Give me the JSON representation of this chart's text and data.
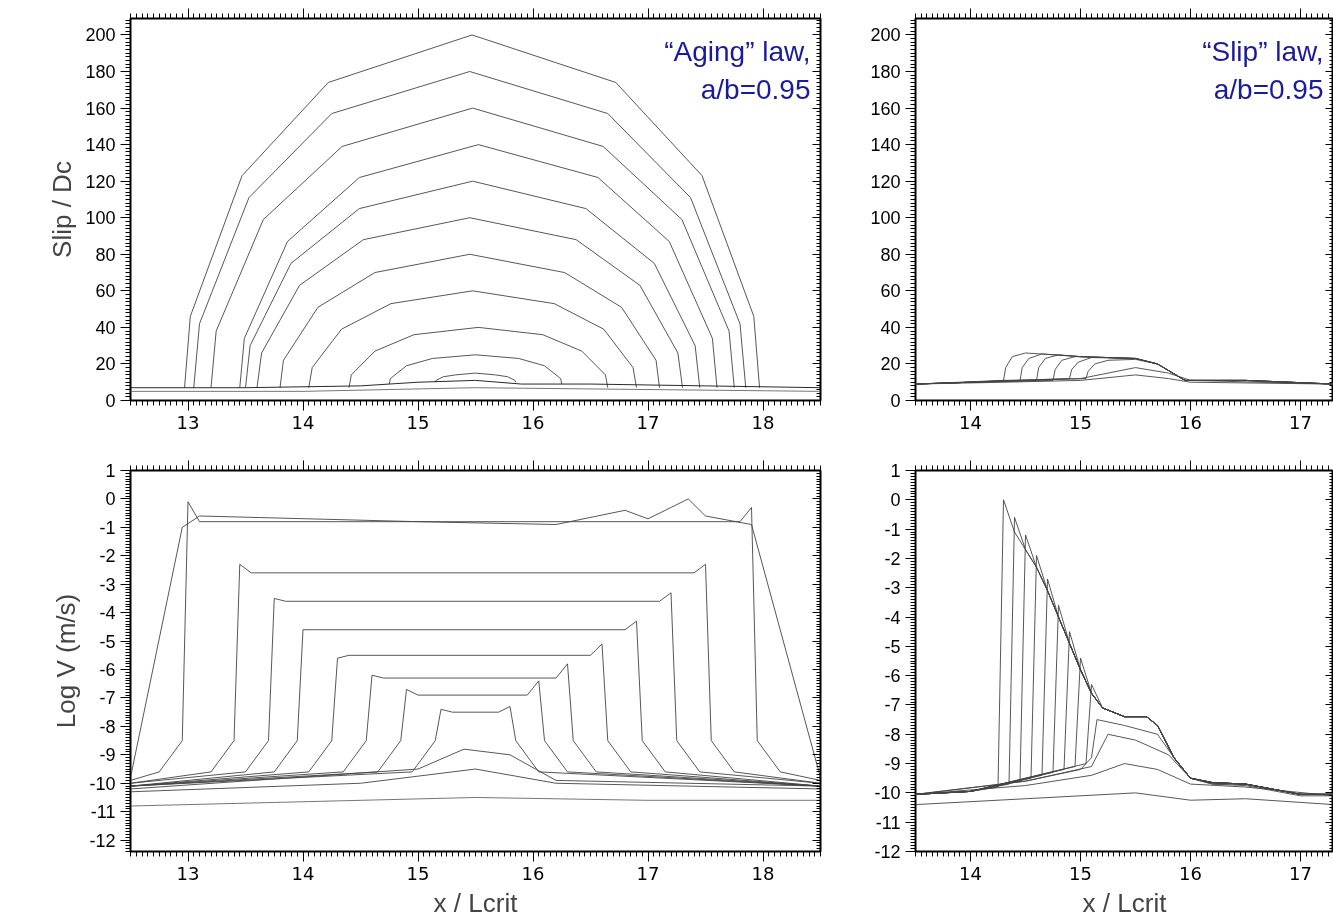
{
  "chart_data": [
    {
      "type": "line",
      "ylabel": "Slip / Dc",
      "annotations": [
        "“Aging” law,",
        "a/b=0.95"
      ],
      "xlim": [
        12.5,
        18.5
      ],
      "xticks": [
        13,
        14,
        15,
        16,
        17,
        18
      ],
      "ylim": [
        0,
        209
      ],
      "yticks": [
        0,
        20,
        40,
        60,
        80,
        100,
        120,
        140,
        160,
        180,
        200
      ],
      "series": [
        {
          "color": "#444444",
          "x": [
            12.97,
            13.02,
            13.47,
            14.22,
            15.47,
            16.72,
            17.47,
            17.92,
            17.97
          ],
          "values": [
            7,
            46,
            123,
            174,
            200,
            174,
            123,
            46,
            7
          ]
        },
        {
          "color": "#444444",
          "x": [
            13.05,
            13.1,
            13.53,
            14.25,
            15.45,
            16.65,
            17.37,
            17.8,
            17.85
          ],
          "values": [
            7,
            42,
            111,
            157,
            180,
            157,
            111,
            42,
            7
          ]
        },
        {
          "color": "#444444",
          "x": [
            13.2,
            13.245,
            13.655,
            14.34,
            15.475,
            16.61,
            17.295,
            17.705,
            17.75
          ],
          "values": [
            7,
            38,
            99,
            139,
            160,
            139,
            99,
            38,
            7
          ]
        },
        {
          "color": "#444444",
          "x": [
            13.45,
            13.49,
            13.865,
            14.49,
            15.525,
            16.565,
            17.185,
            17.56,
            17.6
          ],
          "values": [
            7,
            34,
            87,
            122,
            140,
            122,
            87,
            34,
            7
          ]
        },
        {
          "color": "#444444",
          "x": [
            13.5,
            13.54,
            13.895,
            14.49,
            15.475,
            16.46,
            17.055,
            17.41,
            17.45
          ],
          "values": [
            7,
            30,
            75,
            105,
            120,
            105,
            75,
            30,
            7
          ]
        },
        {
          "color": "#444444",
          "x": [
            13.6,
            13.64,
            13.97,
            14.525,
            15.45,
            16.375,
            16.93,
            17.26,
            17.3
          ],
          "values": [
            7,
            26,
            63,
            88,
            100,
            88,
            63,
            26,
            7
          ]
        },
        {
          "color": "#444444",
          "x": [
            13.8,
            13.83,
            14.13,
            14.625,
            15.45,
            16.275,
            16.77,
            17.07,
            17.1
          ],
          "values": [
            7,
            22,
            51,
            70,
            80,
            70,
            51,
            22,
            7
          ]
        },
        {
          "color": "#444444",
          "x": [
            14.05,
            14.08,
            14.335,
            14.765,
            15.475,
            16.185,
            16.615,
            16.87,
            16.9
          ],
          "values": [
            7,
            18,
            39,
            53,
            60,
            53,
            39,
            18,
            7
          ]
        },
        {
          "color": "#444444",
          "x": [
            14.4,
            14.42,
            14.625,
            14.965,
            15.525,
            16.085,
            16.425,
            16.63,
            16.65
          ],
          "values": [
            7,
            14,
            27,
            36,
            40,
            36,
            27,
            14,
            7
          ]
        },
        {
          "color": "#444444",
          "x": [
            14.75,
            14.76,
            14.9,
            15.125,
            15.5,
            15.875,
            16.1,
            16.24,
            16.25
          ],
          "values": [
            9,
            12,
            19,
            23,
            25,
            23,
            19,
            12,
            9
          ]
        },
        {
          "color": "#444444",
          "x": [
            15.15,
            15.157,
            15.22,
            15.325,
            15.5,
            15.675,
            15.78,
            15.843,
            15.85
          ],
          "values": [
            10,
            11,
            13,
            14,
            15,
            14,
            13,
            11,
            10
          ]
        },
        {
          "color": "#111111",
          "x": [
            12.5,
            13.5,
            14.5,
            15.0,
            15.5,
            15.9,
            16.5,
            17.5,
            18.5
          ],
          "values": [
            7,
            7,
            8,
            10,
            11,
            9,
            9,
            8,
            7
          ]
        },
        {
          "color": "#666666",
          "x": [
            12.5,
            14.0,
            15.5,
            17.0,
            18.5
          ],
          "values": [
            5,
            5,
            7,
            6,
            5
          ]
        }
      ]
    },
    {
      "type": "line",
      "annotations": [
        "“Slip” law,",
        "a/b=0.95"
      ],
      "xlim": [
        13.5,
        17.3
      ],
      "xticks": [
        14,
        15,
        16,
        17
      ],
      "ylim": [
        0,
        209
      ],
      "yticks": [
        0,
        20,
        40,
        60,
        80,
        100,
        120,
        140,
        160,
        180,
        200
      ],
      "series": [
        {
          "color": "#444444",
          "x": [
            13.5,
            14.0,
            14.3,
            14.32,
            14.38,
            14.5,
            15.0,
            15.5,
            15.7,
            15.95,
            16.5,
            17.3
          ],
          "values": [
            9,
            10,
            11,
            18,
            24,
            26,
            24,
            23,
            20,
            11,
            11,
            9
          ]
        },
        {
          "color": "#444444",
          "x": [
            13.5,
            14.0,
            14.45,
            14.47,
            14.53,
            14.65,
            15.0,
            15.5,
            15.7,
            15.95,
            16.5,
            17.3
          ],
          "values": [
            9,
            10,
            11,
            18,
            23,
            25.5,
            24,
            23,
            20,
            11,
            11,
            9
          ]
        },
        {
          "color": "#444444",
          "x": [
            13.5,
            14.0,
            14.6,
            14.62,
            14.68,
            14.8,
            15.0,
            15.5,
            15.7,
            15.95,
            16.5,
            17.3
          ],
          "values": [
            9,
            10,
            11,
            18,
            23,
            25,
            24,
            23,
            20,
            11,
            11,
            9
          ]
        },
        {
          "color": "#444444",
          "x": [
            13.5,
            14.0,
            14.75,
            14.77,
            14.83,
            14.95,
            15.5,
            15.7,
            15.95,
            16.5,
            17.3
          ],
          "values": [
            9,
            10,
            11,
            17,
            22,
            24,
            23,
            20,
            11,
            11,
            9
          ]
        },
        {
          "color": "#444444",
          "x": [
            13.5,
            14.0,
            14.9,
            14.92,
            14.98,
            15.1,
            15.5,
            15.7,
            15.95,
            16.5,
            17.3
          ],
          "values": [
            9,
            10,
            12,
            17,
            21,
            23.5,
            23,
            20,
            11,
            11,
            9
          ]
        },
        {
          "color": "#444444",
          "x": [
            13.5,
            14.0,
            15.05,
            15.07,
            15.13,
            15.25,
            15.5,
            15.7,
            15.95,
            16.5,
            17.3
          ],
          "values": [
            9,
            10,
            12,
            16,
            20,
            22,
            22.5,
            20,
            11,
            11,
            9
          ]
        },
        {
          "color": "#444444",
          "x": [
            13.5,
            14.3,
            15.0,
            15.5,
            15.8,
            16.0,
            17.3
          ],
          "values": [
            9,
            11,
            12,
            18,
            15,
            11,
            9
          ]
        },
        {
          "color": "#444444",
          "x": [
            13.5,
            14.3,
            15.0,
            15.5,
            15.8,
            16.0,
            17.3
          ],
          "values": [
            9,
            10,
            11,
            14,
            12,
            10,
            9
          ]
        }
      ]
    },
    {
      "type": "line",
      "ylabel": "Log V (m/s)",
      "xlabel": "x / Lcrit",
      "xlim": [
        12.5,
        18.5
      ],
      "xticks": [
        13,
        14,
        15,
        16,
        17,
        18
      ],
      "ylim": [
        -12.4,
        1
      ],
      "yticks": [
        -12,
        -11,
        -10,
        -9,
        -8,
        -7,
        -6,
        -5,
        -4,
        -3,
        -2,
        -1,
        0,
        1
      ],
      "series": [
        {
          "color": "#444444",
          "x": [
            12.5,
            14.95,
            15.15,
            15.2,
            15.3,
            15.7,
            15.8,
            15.85,
            16.05,
            18.5
          ],
          "values": [
            -10.1,
            -9.6,
            -8.5,
            -7.4,
            -7.5,
            -7.5,
            -7.3,
            -8.5,
            -9.6,
            -10.1
          ]
        },
        {
          "color": "#444444",
          "x": [
            12.5,
            14.65,
            14.85,
            14.9,
            15.0,
            15.95,
            16.05,
            16.1,
            16.3,
            18.5
          ],
          "values": [
            -10.1,
            -9.6,
            -8.5,
            -6.7,
            -6.9,
            -6.9,
            -6.4,
            -8.5,
            -9.6,
            -10.1
          ]
        },
        {
          "color": "#444444",
          "x": [
            12.5,
            14.35,
            14.55,
            14.6,
            14.7,
            16.2,
            16.3,
            16.35,
            16.55,
            18.5
          ],
          "values": [
            -10.1,
            -9.6,
            -8.5,
            -6.2,
            -6.3,
            -6.3,
            -5.8,
            -8.5,
            -9.6,
            -10.1
          ]
        },
        {
          "color": "#444444",
          "x": [
            12.5,
            14.05,
            14.25,
            14.3,
            14.4,
            16.5,
            16.6,
            16.65,
            16.85,
            18.5
          ],
          "values": [
            -10.1,
            -9.6,
            -8.5,
            -5.6,
            -5.5,
            -5.5,
            -5.1,
            -8.5,
            -9.6,
            -10.1
          ]
        },
        {
          "color": "#444444",
          "x": [
            12.5,
            13.75,
            13.95,
            14.0,
            14.1,
            16.8,
            16.9,
            16.95,
            17.15,
            18.5
          ],
          "values": [
            -10.1,
            -9.6,
            -8.5,
            -4.6,
            -4.6,
            -4.6,
            -4.3,
            -8.5,
            -9.6,
            -10.1
          ]
        },
        {
          "color": "#444444",
          "x": [
            12.5,
            13.5,
            13.7,
            13.75,
            13.85,
            17.1,
            17.2,
            17.25,
            17.45,
            18.5
          ],
          "values": [
            -10.0,
            -9.6,
            -8.5,
            -3.5,
            -3.6,
            -3.6,
            -3.3,
            -8.5,
            -9.6,
            -10.0
          ]
        },
        {
          "color": "#444444",
          "x": [
            12.5,
            13.2,
            13.4,
            13.45,
            13.55,
            17.4,
            17.5,
            17.55,
            17.75,
            18.5
          ],
          "values": [
            -10.0,
            -9.6,
            -8.5,
            -2.3,
            -2.6,
            -2.6,
            -2.3,
            -8.5,
            -9.6,
            -10.0
          ]
        },
        {
          "color": "#444444",
          "x": [
            12.5,
            12.75,
            12.95,
            13.0,
            13.1,
            17.8,
            17.9,
            17.95,
            18.15,
            18.5
          ],
          "values": [
            -9.9,
            -9.6,
            -8.5,
            -0.1,
            -0.8,
            -0.8,
            -0.3,
            -8.5,
            -9.6,
            -9.9
          ]
        },
        {
          "color": "#444444",
          "x": [
            12.5,
            12.95,
            13.1,
            15.0,
            16.2,
            16.8,
            17.0,
            17.35,
            17.5,
            17.9,
            18.5
          ],
          "values": [
            -9.8,
            -1.0,
            -0.6,
            -0.8,
            -0.9,
            -0.4,
            -0.7,
            0.0,
            -0.6,
            -0.9,
            -9.8
          ]
        },
        {
          "color": "#444444",
          "x": [
            12.5,
            14.5,
            15.5,
            16.2,
            18.5
          ],
          "values": [
            -10.3,
            -10.0,
            -9.5,
            -10.0,
            -10.2
          ]
        },
        {
          "color": "#444444",
          "x": [
            12.5,
            15.0,
            15.4,
            15.8,
            16.2,
            18.5
          ],
          "values": [
            -10.2,
            -9.5,
            -8.8,
            -9.0,
            -9.9,
            -10.1
          ]
        },
        {
          "color": "#666666",
          "x": [
            12.5,
            14.0,
            15.5,
            17.0,
            18.5
          ],
          "values": [
            -10.8,
            -10.65,
            -10.5,
            -10.6,
            -10.6
          ]
        }
      ]
    },
    {
      "type": "line",
      "xlabel": "x / Lcrit",
      "xlim": [
        13.5,
        17.3
      ],
      "xticks": [
        14,
        15,
        16,
        17
      ],
      "ylim": [
        -12,
        1
      ],
      "yticks": [
        -12,
        -11,
        -10,
        -9,
        -8,
        -7,
        -6,
        -5,
        -4,
        -3,
        -2,
        -1,
        0,
        1
      ],
      "series": [
        {
          "color": "#444444",
          "x": [
            13.5,
            14.0,
            14.25,
            14.3,
            14.4,
            14.5,
            14.6,
            14.7,
            14.8,
            14.9,
            15.0,
            15.1,
            15.2,
            15.4,
            15.6,
            15.7,
            15.85,
            16.0,
            16.2,
            16.5,
            17.0,
            17.3
          ],
          "values": [
            -10.05,
            -9.95,
            -9.8,
            0,
            -1.1,
            -1.7,
            -2.3,
            -3.1,
            -4.0,
            -4.9,
            -5.8,
            -6.6,
            -7.1,
            -7.4,
            -7.4,
            -7.7,
            -8.8,
            -9.5,
            -9.65,
            -9.7,
            -10.05,
            -10.05
          ]
        },
        {
          "color": "#444444",
          "x": [
            13.5,
            14.0,
            14.35,
            14.4,
            14.5,
            14.6,
            14.7,
            14.8,
            14.9,
            15.0,
            15.1,
            15.2,
            15.4,
            15.6,
            15.7,
            15.85,
            16.0,
            16.2,
            16.5,
            17.0,
            17.3
          ],
          "values": [
            -10.05,
            -9.95,
            -9.7,
            -0.6,
            -1.7,
            -2.3,
            -3.1,
            -4.0,
            -4.9,
            -5.8,
            -6.6,
            -7.1,
            -7.4,
            -7.4,
            -7.7,
            -8.8,
            -9.5,
            -9.65,
            -9.7,
            -10.05,
            -10.05
          ]
        },
        {
          "color": "#444444",
          "x": [
            13.5,
            14.0,
            14.45,
            14.5,
            14.6,
            14.7,
            14.8,
            14.9,
            15.0,
            15.1,
            15.2,
            15.4,
            15.6,
            15.7,
            15.85,
            16.0,
            16.2,
            16.5,
            17.0,
            17.3
          ],
          "values": [
            -10.05,
            -9.95,
            -9.6,
            -1.2,
            -2.3,
            -3.1,
            -4.0,
            -4.9,
            -5.8,
            -6.6,
            -7.1,
            -7.4,
            -7.4,
            -7.7,
            -8.8,
            -9.5,
            -9.65,
            -9.7,
            -10.05,
            -10.05
          ]
        },
        {
          "color": "#444444",
          "x": [
            13.5,
            14.0,
            14.55,
            14.6,
            14.7,
            14.8,
            14.9,
            15.0,
            15.1,
            15.2,
            15.4,
            15.6,
            15.7,
            15.85,
            16.0,
            16.2,
            16.5,
            17.0,
            17.3
          ],
          "values": [
            -10.05,
            -9.95,
            -9.5,
            -1.9,
            -3.1,
            -4.0,
            -4.9,
            -5.8,
            -6.6,
            -7.1,
            -7.4,
            -7.4,
            -7.7,
            -8.8,
            -9.5,
            -9.65,
            -9.7,
            -10.05,
            -10.05
          ]
        },
        {
          "color": "#444444",
          "x": [
            13.5,
            14.0,
            14.65,
            14.7,
            14.8,
            14.9,
            15.0,
            15.1,
            15.2,
            15.4,
            15.6,
            15.7,
            15.85,
            16.0,
            16.2,
            16.5,
            17.0,
            17.3
          ],
          "values": [
            -10.05,
            -9.95,
            -9.4,
            -2.7,
            -4.0,
            -4.9,
            -5.8,
            -6.6,
            -7.1,
            -7.4,
            -7.4,
            -7.7,
            -8.8,
            -9.5,
            -9.65,
            -9.7,
            -10.05,
            -10.05
          ]
        },
        {
          "color": "#444444",
          "x": [
            13.5,
            14.0,
            14.75,
            14.8,
            14.9,
            15.0,
            15.1,
            15.2,
            15.4,
            15.6,
            15.7,
            15.85,
            16.0,
            16.2,
            16.5,
            17.0,
            17.3
          ],
          "values": [
            -10.05,
            -9.95,
            -9.3,
            -3.6,
            -4.9,
            -5.8,
            -6.6,
            -7.1,
            -7.4,
            -7.4,
            -7.7,
            -8.8,
            -9.5,
            -9.65,
            -9.7,
            -10.05,
            -10.05
          ]
        },
        {
          "color": "#444444",
          "x": [
            13.5,
            14.0,
            14.85,
            14.9,
            15.0,
            15.1,
            15.2,
            15.4,
            15.6,
            15.7,
            15.85,
            16.0,
            16.2,
            16.5,
            17.0,
            17.3
          ],
          "values": [
            -10.05,
            -9.95,
            -9.2,
            -4.5,
            -5.8,
            -6.6,
            -7.1,
            -7.4,
            -7.4,
            -7.7,
            -8.8,
            -9.5,
            -9.65,
            -9.7,
            -10.05,
            -10.05
          ]
        },
        {
          "color": "#444444",
          "x": [
            13.5,
            14.0,
            14.95,
            15.0,
            15.1,
            15.2,
            15.4,
            15.6,
            15.7,
            15.85,
            16.0,
            16.2,
            16.5,
            17.0,
            17.3
          ],
          "values": [
            -10.05,
            -9.95,
            -9.1,
            -5.4,
            -6.6,
            -7.1,
            -7.4,
            -7.4,
            -7.7,
            -8.8,
            -9.5,
            -9.65,
            -9.7,
            -10.05,
            -10.05
          ]
        },
        {
          "color": "#444444",
          "x": [
            13.5,
            14.0,
            15.05,
            15.1,
            15.2,
            15.4,
            15.6,
            15.7,
            15.85,
            16.0,
            16.2,
            16.5,
            17.0,
            17.3
          ],
          "values": [
            -10.05,
            -9.95,
            -9.0,
            -6.3,
            -7.1,
            -7.4,
            -7.4,
            -7.7,
            -8.8,
            -9.5,
            -9.65,
            -9.7,
            -10.05,
            -10.05
          ]
        },
        {
          "color": "#444444",
          "x": [
            13.5,
            14.5,
            15.0,
            15.1,
            15.15,
            15.4,
            15.7,
            15.85,
            16.0,
            16.2,
            16.5,
            17.0,
            17.3
          ],
          "values": [
            -10.05,
            -9.6,
            -9.2,
            -8.8,
            -7.5,
            -7.7,
            -8.0,
            -8.8,
            -9.5,
            -9.7,
            -9.7,
            -10.05,
            -10.05
          ]
        },
        {
          "color": "#444444",
          "x": [
            13.5,
            14.5,
            15.1,
            15.25,
            15.5,
            15.8,
            16.0,
            16.2,
            16.5,
            17.0,
            17.3
          ],
          "values": [
            -10.05,
            -9.6,
            -9.1,
            -8.0,
            -8.2,
            -8.7,
            -9.5,
            -9.7,
            -9.75,
            -10.1,
            -10.1
          ]
        },
        {
          "color": "#444444",
          "x": [
            13.5,
            14.5,
            15.1,
            15.4,
            15.7,
            16.0,
            16.5,
            17.3
          ],
          "values": [
            -10.05,
            -9.75,
            -9.4,
            -9.0,
            -9.2,
            -9.7,
            -9.8,
            -10.1
          ]
        },
        {
          "color": "#444444",
          "x": [
            13.5,
            14.5,
            15.5,
            16.0,
            16.5,
            17.3
          ],
          "values": [
            -10.4,
            -10.2,
            -10.0,
            -10.25,
            -10.2,
            -10.4
          ]
        }
      ]
    }
  ]
}
